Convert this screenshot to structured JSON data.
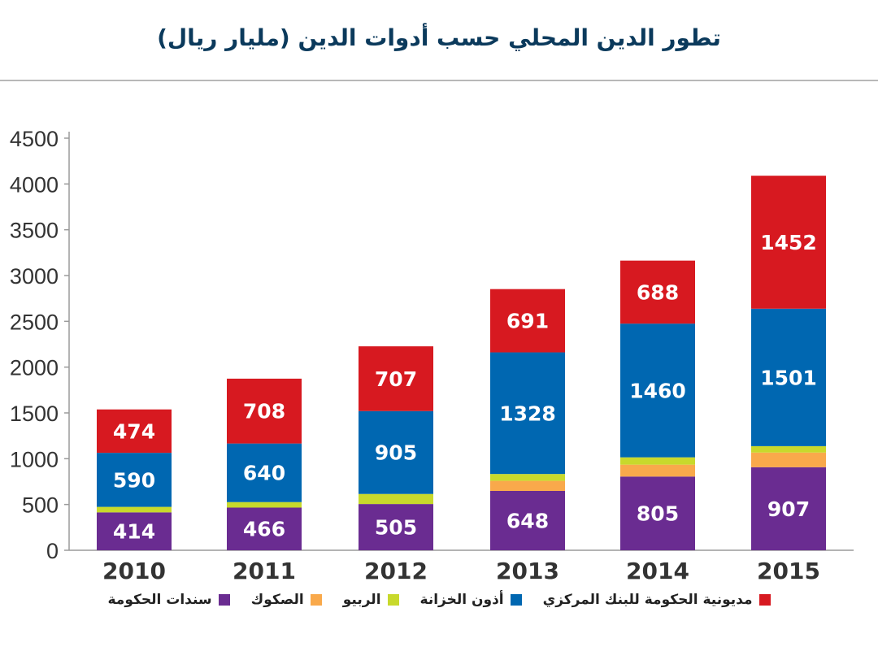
{
  "title": "تطور الدين المحلي حسب أدوات الدين (مليار ريال)",
  "chart_data": {
    "type": "bar",
    "stacked": true,
    "categories": [
      "2010",
      "2011",
      "2012",
      "2013",
      "2014",
      "2015"
    ],
    "ylim": [
      0,
      4500
    ],
    "yticks": [
      0,
      500,
      1000,
      1500,
      2000,
      2500,
      3000,
      3500,
      4000,
      4500
    ],
    "grid": false,
    "legend_position": "bottom",
    "series": [
      {
        "name": "سندات الحكومة",
        "color": "#6a2c91",
        "values": [
          414,
          466,
          505,
          648,
          805,
          907
        ],
        "labels": [
          "414",
          "466",
          "505",
          "648",
          "805",
          "907"
        ]
      },
      {
        "name": "الصكوك",
        "color": "#f9a94b",
        "values": [
          0,
          0,
          0,
          110,
          130,
          160
        ],
        "labels": []
      },
      {
        "name": "الربيو",
        "color": "#c8d92c",
        "values": [
          60,
          60,
          110,
          75,
          80,
          70
        ],
        "labels": []
      },
      {
        "name": "أذون الخزانة",
        "color": "#0067b1",
        "values": [
          590,
          640,
          905,
          1328,
          1460,
          1501
        ],
        "labels": [
          "590",
          "640",
          "905",
          "1328",
          "1460",
          "1501"
        ]
      },
      {
        "name": "مديونية الحكومة للبنك المركزي",
        "color": "#d71920",
        "values": [
          474,
          708,
          707,
          691,
          688,
          1452
        ],
        "labels": [
          "474",
          "708",
          "707",
          "691",
          "688",
          "1452"
        ]
      }
    ]
  }
}
